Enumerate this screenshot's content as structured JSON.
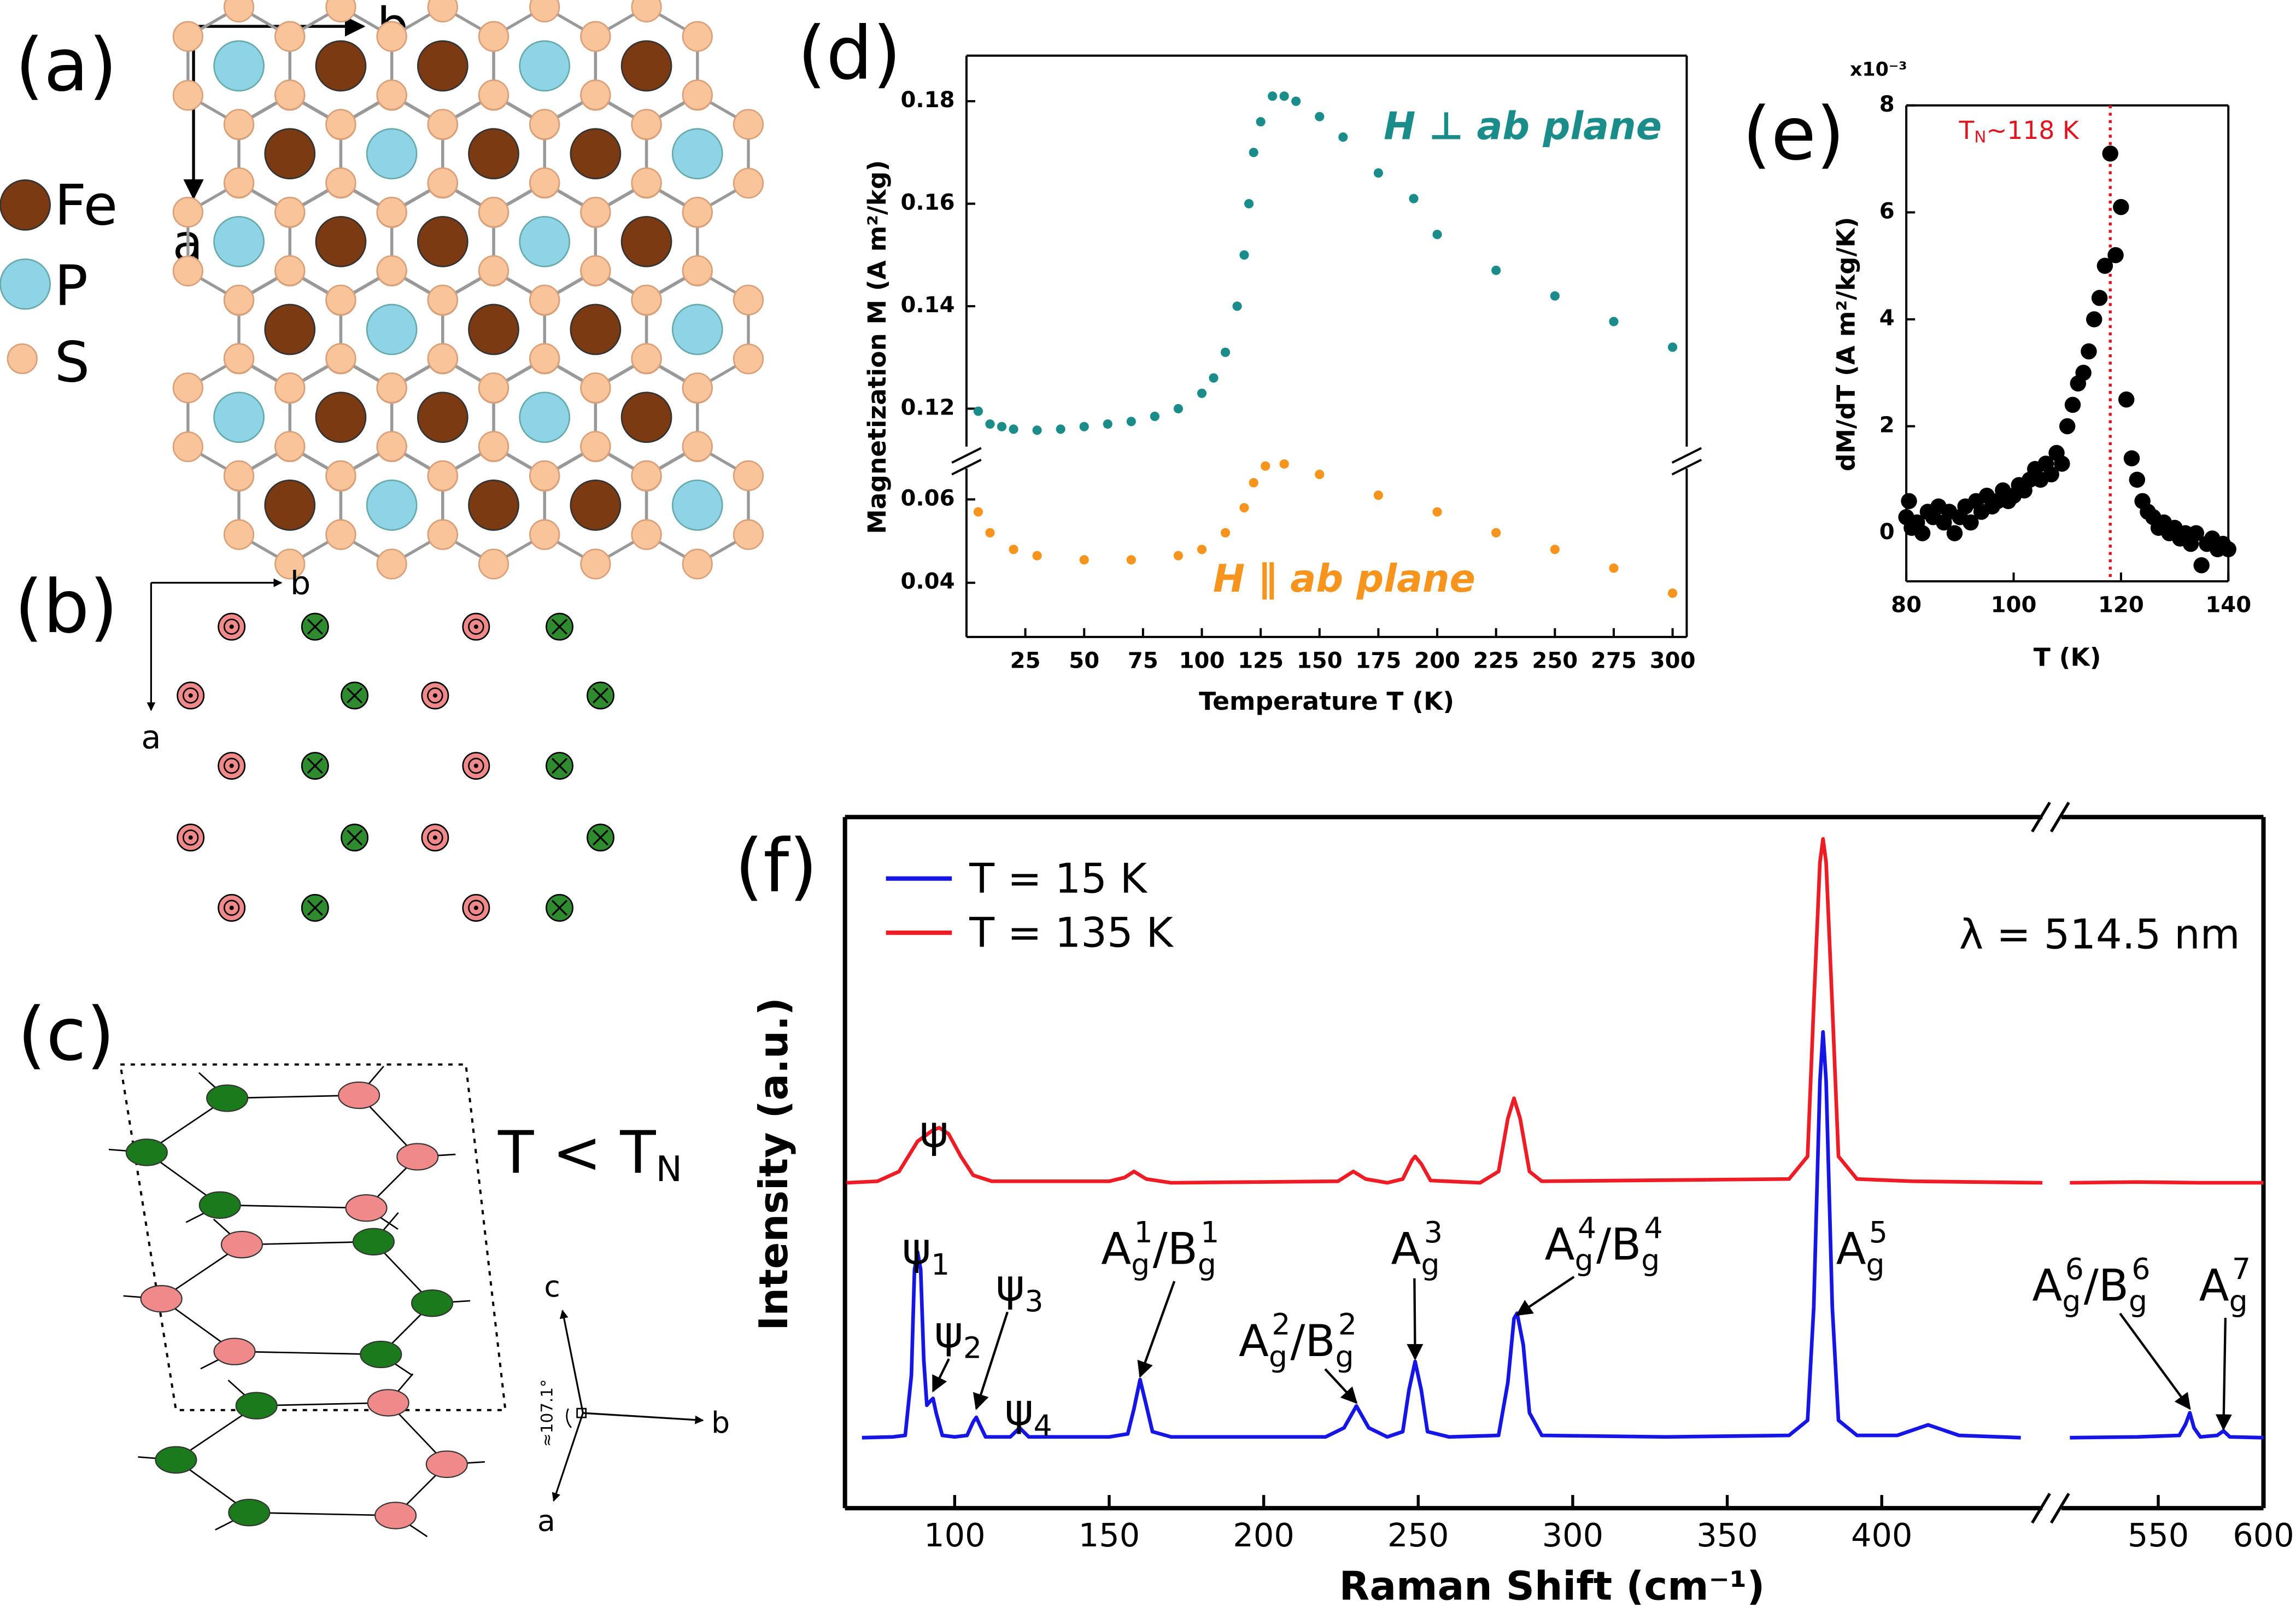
{
  "panels": {
    "a": {
      "label": "(a)",
      "axes": [
        "b",
        "a"
      ],
      "legend": [
        "Fe",
        "P",
        "S"
      ]
    },
    "b": {
      "label": "(b)",
      "axes": [
        "b",
        "a"
      ]
    },
    "c": {
      "label": "(c)",
      "condition": [
        "T < T",
        "N"
      ],
      "axes": [
        "c",
        "b",
        "a"
      ],
      "angle": "≈107.1°"
    }
  },
  "chart_data": [
    {
      "type": "scatter",
      "panel_label": "(d)",
      "ylabel": "Magnetization M (A m²/kg)",
      "xlim": [
        0,
        306
      ],
      "ylim": [
        0.1126,
        0.1889
      ],
      "yticks": [
        0.12,
        0.14,
        0.16,
        0.18
      ],
      "series": [
        {
          "name": "H ⊥ ab plane",
          "color": "#1a8c8a",
          "x": [
            5,
            10,
            15,
            20,
            30,
            40,
            50,
            60,
            70,
            80,
            90,
            100,
            105,
            110,
            115,
            118,
            120,
            122,
            125,
            130,
            135,
            140,
            150,
            160,
            175,
            190,
            200,
            225,
            250,
            275,
            300
          ],
          "values": [
            0.1195,
            0.117,
            0.1165,
            0.116,
            0.1158,
            0.116,
            0.1165,
            0.117,
            0.1175,
            0.1185,
            0.12,
            0.123,
            0.126,
            0.131,
            0.14,
            0.15,
            0.16,
            0.17,
            0.176,
            0.181,
            0.181,
            0.18,
            0.177,
            0.173,
            0.166,
            0.161,
            0.154,
            0.147,
            0.142,
            0.137,
            0.132
          ]
        }
      ]
    },
    {
      "type": "scatter",
      "xlabel": "Temperature T (K)",
      "xlim": [
        0,
        306
      ],
      "xticks": [
        25,
        50,
        75,
        100,
        125,
        150,
        175,
        200,
        225,
        250,
        275,
        300
      ],
      "ylim": [
        0.027,
        0.0674
      ],
      "yticks": [
        0.04,
        0.06
      ],
      "series": [
        {
          "name": "H ∥ ab plane",
          "color": "#f7941d",
          "x": [
            5,
            10,
            20,
            30,
            50,
            70,
            90,
            100,
            110,
            118,
            122,
            127,
            135,
            150,
            175,
            200,
            225,
            250,
            275,
            300
          ],
          "values": [
            0.057,
            0.052,
            0.048,
            0.0465,
            0.0455,
            0.0455,
            0.0465,
            0.048,
            0.052,
            0.058,
            0.064,
            0.068,
            0.0685,
            0.066,
            0.061,
            0.057,
            0.052,
            0.048,
            0.0435,
            0.0375
          ]
        }
      ]
    },
    {
      "type": "scatter",
      "panel_label": "(e)",
      "xlabel": "T (K)",
      "ylabel": "dM/dT (A m²/kg/K)",
      "multiplier": "x10⁻³",
      "xlim": [
        80,
        140
      ],
      "xticks": [
        80,
        100,
        120,
        140
      ],
      "ylim": [
        -0.9,
        8
      ],
      "yticks": [
        0,
        2,
        4,
        6,
        8
      ],
      "annotation": [
        "T",
        "N",
        "~118 K"
      ],
      "vline": 118,
      "series": [
        {
          "color": "#000000",
          "x": [
            80,
            80.5,
            81,
            82,
            83,
            84,
            85,
            86,
            87,
            88,
            89,
            90,
            91,
            92,
            93,
            94,
            95,
            96,
            97,
            98,
            99,
            100,
            101,
            102,
            103,
            104,
            105,
            106,
            107,
            108,
            109,
            110,
            111,
            112,
            113,
            114,
            115,
            116,
            117,
            118,
            119,
            120,
            121,
            122,
            123,
            124,
            125,
            126,
            127,
            128,
            129,
            130,
            131,
            132,
            133,
            134,
            135,
            136,
            137,
            138,
            139,
            140
          ],
          "values": [
            0.3,
            0.6,
            0.1,
            0.2,
            0.0,
            0.4,
            0.3,
            0.5,
            0.2,
            0.4,
            0.0,
            0.3,
            0.5,
            0.2,
            0.6,
            0.4,
            0.7,
            0.5,
            0.6,
            0.8,
            0.6,
            0.7,
            0.9,
            0.8,
            1.0,
            1.2,
            1.0,
            1.3,
            1.1,
            1.5,
            1.3,
            2.0,
            2.4,
            2.8,
            3.0,
            3.4,
            4.0,
            4.4,
            5.0,
            7.1,
            5.2,
            6.1,
            2.5,
            1.4,
            1.0,
            0.6,
            0.4,
            0.3,
            0.1,
            0.2,
            0.0,
            0.1,
            -0.1,
            0.0,
            -0.2,
            0.0,
            -0.6,
            -0.2,
            -0.1,
            -0.3,
            -0.2,
            -0.3
          ]
        }
      ]
    },
    {
      "type": "line",
      "panel_label": "(f)",
      "xlabel": "Raman Shift (cm⁻¹)",
      "ylabel": "Intensity (a.u.)",
      "annotation": "λ = 514.5 nm",
      "legend": "upper left",
      "xlim": [
        64.5,
        452
      ],
      "xticks": [
        100,
        150,
        200,
        250,
        300,
        350,
        400
      ],
      "ylim": [
        0.0835,
        1
      ],
      "series": [
        {
          "name": "T = 15 K",
          "color": "#1515e6",
          "x": [
            70,
            80,
            84,
            86,
            87,
            88,
            89,
            90,
            91,
            92,
            93,
            94,
            96,
            100,
            104,
            106,
            107,
            108,
            110,
            118,
            121,
            124,
            150,
            156,
            158,
            160,
            162,
            164,
            170,
            220,
            226,
            230,
            234,
            240,
            245,
            247,
            249,
            251,
            253,
            260,
            276,
            279,
            281,
            282,
            284,
            286,
            290,
            330,
            370,
            376,
            378,
            380,
            381,
            382,
            384,
            386,
            392,
            405,
            415,
            425,
            445
          ],
          "values": [
            0.177,
            0.178,
            0.18,
            0.26,
            0.4,
            0.423,
            0.4,
            0.28,
            0.22,
            0.225,
            0.229,
            0.21,
            0.18,
            0.178,
            0.18,
            0.198,
            0.204,
            0.195,
            0.178,
            0.178,
            0.19,
            0.178,
            0.178,
            0.182,
            0.215,
            0.254,
            0.22,
            0.185,
            0.178,
            0.178,
            0.19,
            0.219,
            0.19,
            0.178,
            0.185,
            0.24,
            0.278,
            0.24,
            0.185,
            0.178,
            0.18,
            0.25,
            0.335,
            0.342,
            0.3,
            0.21,
            0.18,
            0.178,
            0.18,
            0.2,
            0.35,
            0.65,
            0.715,
            0.65,
            0.35,
            0.2,
            0.18,
            0.18,
            0.194,
            0.18,
            0.177
          ]
        },
        {
          "name": "T = 135 K",
          "color": "#ee1c24",
          "x": [
            65,
            75,
            82,
            88,
            93,
            95,
            98,
            102,
            106,
            112,
            150,
            155,
            158,
            162,
            170,
            224,
            229,
            233,
            240,
            245,
            248,
            249,
            251,
            254,
            270,
            276,
            279,
            281,
            283,
            286,
            290,
            370,
            376,
            378,
            380,
            381,
            382,
            384,
            386,
            392,
            410,
            452
          ],
          "values": [
            0.515,
            0.517,
            0.53,
            0.57,
            0.585,
            0.588,
            0.58,
            0.55,
            0.525,
            0.517,
            0.517,
            0.522,
            0.53,
            0.52,
            0.515,
            0.517,
            0.53,
            0.52,
            0.515,
            0.52,
            0.545,
            0.55,
            0.54,
            0.518,
            0.515,
            0.53,
            0.6,
            0.627,
            0.6,
            0.53,
            0.517,
            0.52,
            0.55,
            0.75,
            0.94,
            0.971,
            0.94,
            0.75,
            0.55,
            0.52,
            0.517,
            0.515
          ]
        }
      ],
      "peak_labels": [
        {
          "peak": 95,
          "label": [
            [
              "ψ"
            ]
          ]
        },
        {
          "peak": 88,
          "label": [
            [
              "ψ",
              "1"
            ]
          ]
        },
        {
          "peak": 93,
          "label": [
            [
              "ψ",
              "2"
            ]
          ]
        },
        {
          "peak": 107,
          "label": [
            [
              "ψ",
              "3"
            ]
          ]
        },
        {
          "peak": 121,
          "label": [
            [
              "ψ",
              "4"
            ]
          ]
        },
        {
          "peak": 160,
          "label": [
            [
              "A",
              "g",
              "1"
            ],
            [
              "/B",
              "g",
              "1"
            ]
          ]
        },
        {
          "peak": 230,
          "label": [
            [
              "A",
              "g",
              "2"
            ],
            [
              "/B",
              "g",
              "2"
            ]
          ]
        },
        {
          "peak": 249,
          "label": [
            [
              "A",
              "g",
              "3"
            ]
          ]
        },
        {
          "peak": 282,
          "label": [
            [
              "A",
              "g",
              "4"
            ],
            [
              "/B",
              "g",
              "4"
            ]
          ]
        },
        {
          "peak": 381,
          "label": [
            [
              "A",
              "g",
              "5"
            ]
          ]
        }
      ]
    },
    {
      "type": "line",
      "xlim": [
        504,
        600
      ],
      "xticks": [
        550,
        600
      ],
      "ylim": [
        0.0835,
        1
      ],
      "series": [
        {
          "color": "#1515e6",
          "x": [
            508,
            540,
            560,
            563,
            565,
            567,
            570,
            578,
            581,
            584,
            600
          ],
          "values": [
            0.177,
            0.178,
            0.18,
            0.195,
            0.21,
            0.19,
            0.178,
            0.18,
            0.186,
            0.178,
            0.177
          ]
        },
        {
          "color": "#ee1c24",
          "x": [
            508,
            540,
            570,
            600
          ],
          "values": [
            0.515,
            0.516,
            0.515,
            0.515
          ]
        }
      ],
      "peak_labels": [
        {
          "peak": 565,
          "label": [
            [
              "A",
              "g",
              "6"
            ],
            [
              "/B",
              "g",
              "6"
            ]
          ]
        },
        {
          "peak": 581,
          "label": [
            [
              "A",
              "g",
              "7"
            ]
          ]
        }
      ]
    }
  ]
}
